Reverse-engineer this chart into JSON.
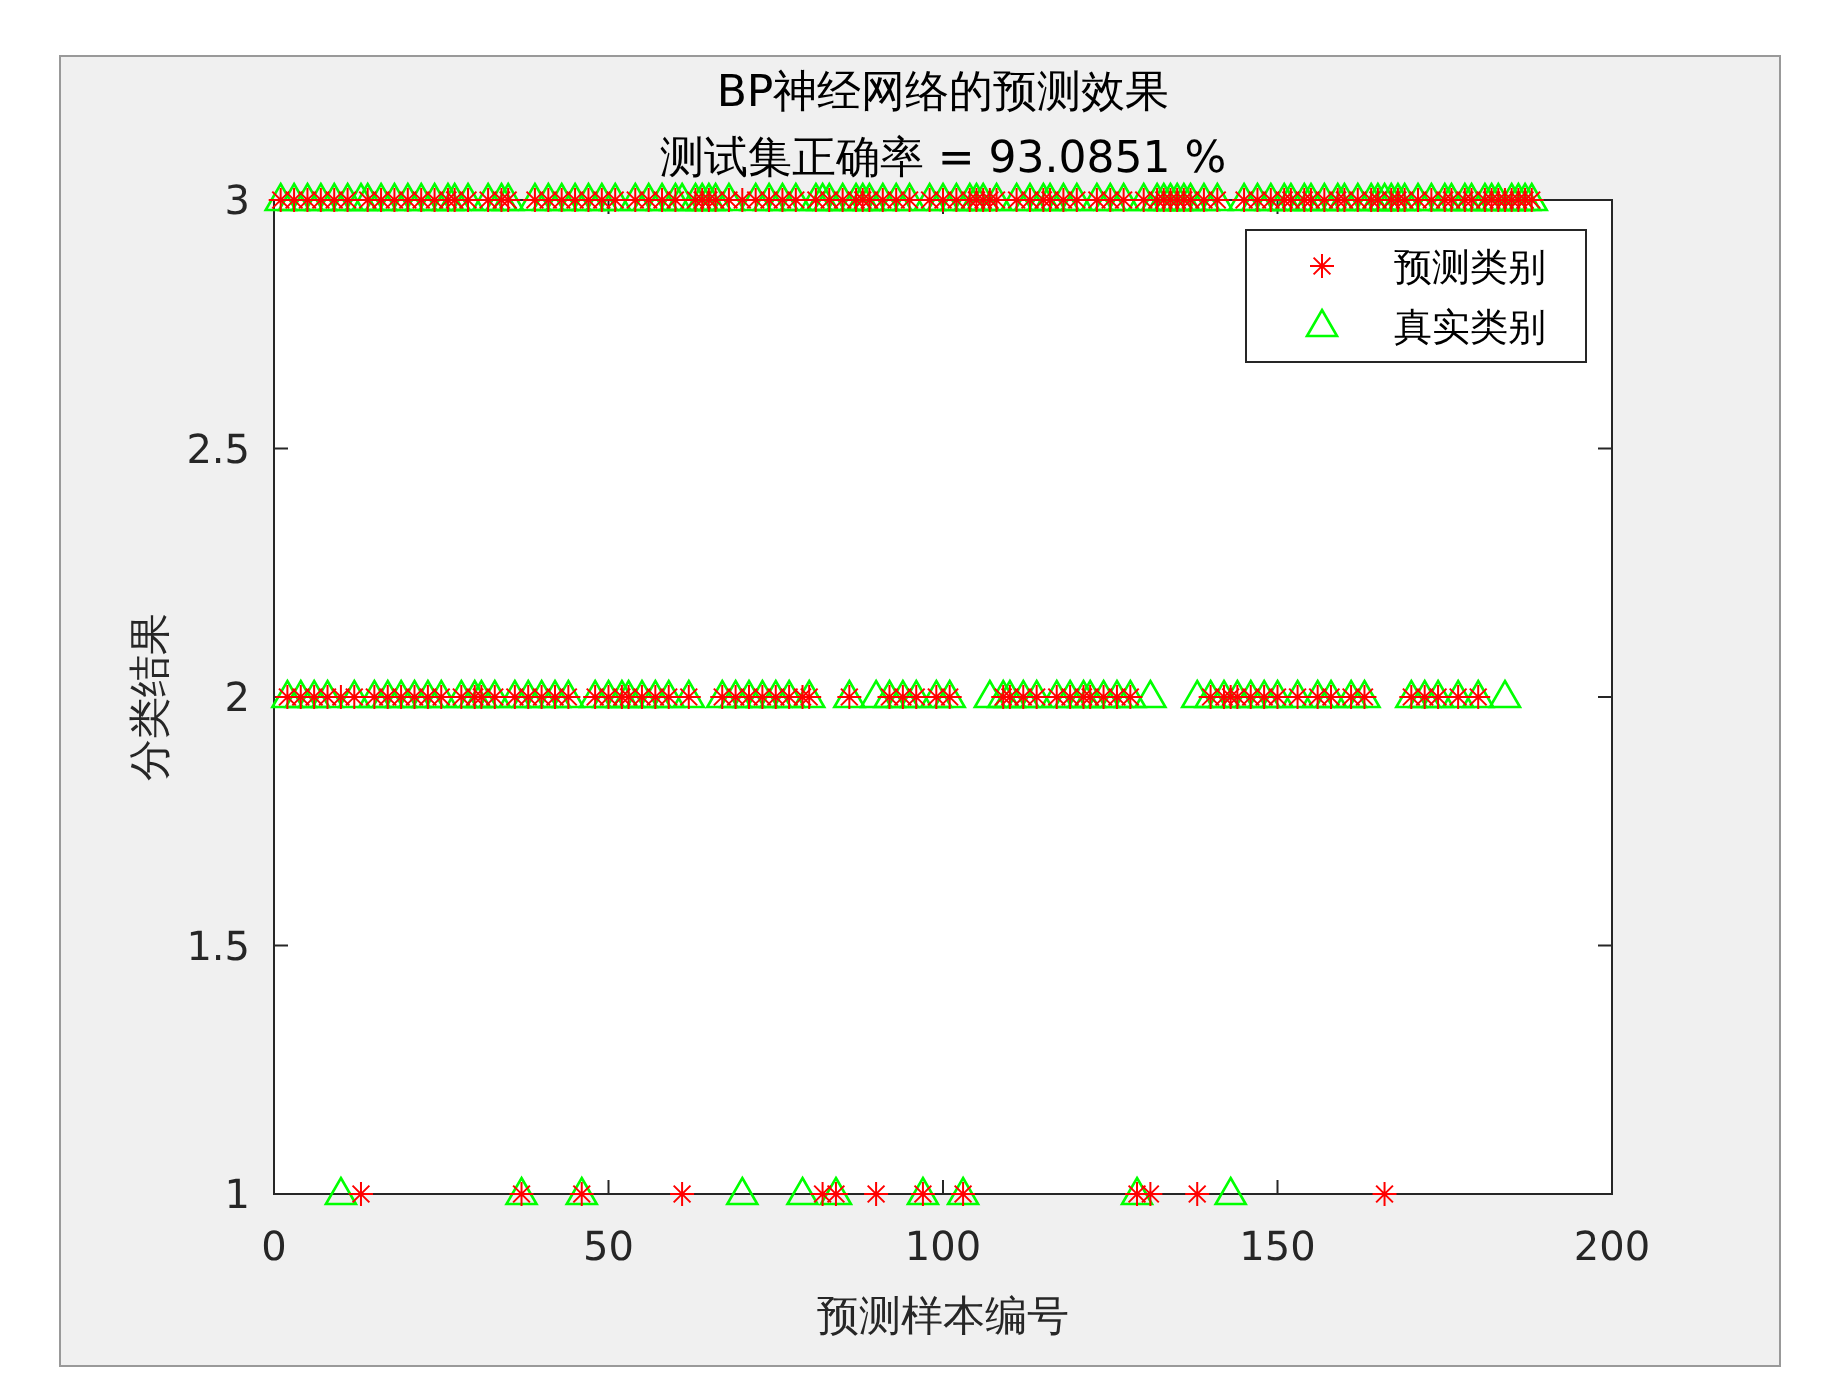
{
  "chart_data": {
    "type": "scatter",
    "title": "BP神经网络的预测效果",
    "subtitle": "测试集正确率 = 93.0851 %",
    "xlabel": "预测样本编号",
    "ylabel": "分类结果",
    "xlim": [
      0,
      200
    ],
    "ylim": [
      1,
      3
    ],
    "xticks": [
      0,
      50,
      100,
      150,
      200
    ],
    "yticks": [
      1,
      1.5,
      2,
      2.5,
      3
    ],
    "legend": "top right",
    "x": [
      1,
      2,
      3,
      4,
      5,
      6,
      7,
      8,
      9,
      10,
      11,
      12,
      13,
      14,
      15,
      16,
      17,
      18,
      19,
      20,
      21,
      22,
      23,
      24,
      25,
      26,
      27,
      28,
      29,
      30,
      31,
      32,
      33,
      34,
      35,
      36,
      37,
      38,
      39,
      40,
      41,
      42,
      43,
      44,
      45,
      46,
      47,
      48,
      49,
      50,
      51,
      52,
      53,
      54,
      55,
      56,
      57,
      58,
      59,
      60,
      61,
      62,
      63,
      64,
      65,
      66,
      67,
      68,
      69,
      70,
      71,
      72,
      73,
      74,
      75,
      76,
      77,
      78,
      79,
      80,
      81,
      82,
      83,
      84,
      85,
      86,
      87,
      88,
      89,
      90,
      91,
      92,
      93,
      94,
      95,
      96,
      97,
      98,
      99,
      100,
      101,
      102,
      103,
      104,
      105,
      106,
      107,
      108,
      109,
      110,
      111,
      112,
      113,
      114,
      115,
      116,
      117,
      118,
      119,
      120,
      121,
      122,
      123,
      124,
      125,
      126,
      127,
      128,
      129,
      130,
      131,
      132,
      133,
      134,
      135,
      136,
      137,
      138,
      139,
      140,
      141,
      142,
      143,
      144,
      145,
      146,
      147,
      148,
      149,
      150,
      151,
      152,
      153,
      154,
      155,
      156,
      157,
      158,
      159,
      160,
      161,
      162,
      163,
      164,
      165,
      166,
      167,
      168,
      169,
      170,
      171,
      172,
      173,
      174,
      175,
      176,
      177,
      178,
      179,
      180,
      181,
      182,
      183,
      184,
      185,
      186,
      187,
      188
    ],
    "series": [
      {
        "name": "预测类别",
        "color": "#ff0000",
        "marker": "cross",
        "values": [
          3,
          2,
          3,
          2,
          3,
          2,
          3,
          2,
          3,
          2,
          3,
          2,
          1,
          3,
          2,
          3,
          2,
          3,
          2,
          3,
          2,
          3,
          2,
          3,
          2,
          3,
          3,
          2,
          3,
          2,
          2,
          3,
          2,
          3,
          3,
          2,
          1,
          2,
          3,
          2,
          3,
          2,
          3,
          2,
          3,
          1,
          3,
          2,
          3,
          2,
          3,
          2,
          2,
          3,
          2,
          3,
          2,
          3,
          2,
          3,
          1,
          2,
          3,
          3,
          3,
          3,
          2,
          3,
          2,
          3,
          2,
          3,
          2,
          3,
          2,
          3,
          2,
          3,
          2,
          2,
          3,
          1,
          3,
          1,
          3,
          2,
          3,
          3,
          3,
          1,
          3,
          2,
          3,
          2,
          3,
          2,
          1,
          3,
          2,
          3,
          2,
          3,
          1,
          3,
          3,
          3,
          3,
          3,
          2,
          2,
          3,
          2,
          3,
          2,
          3,
          3,
          2,
          3,
          2,
          3,
          2,
          2,
          3,
          2,
          3,
          2,
          3,
          2,
          1,
          3,
          1,
          3,
          3,
          3,
          3,
          3,
          3,
          1,
          3,
          2,
          3,
          2,
          2,
          2,
          3,
          2,
          3,
          2,
          3,
          2,
          3,
          3,
          2,
          3,
          3,
          2,
          3,
          2,
          3,
          3,
          2,
          3,
          2,
          3,
          3,
          1,
          3,
          3,
          3,
          2,
          3,
          2,
          3,
          2,
          3,
          3,
          2,
          3,
          3,
          2,
          3,
          3,
          3,
          3,
          3,
          3,
          3,
          3
        ]
      },
      {
        "name": "真实类别",
        "color": "#00ff00",
        "marker": "triangle",
        "values": [
          3,
          2,
          3,
          2,
          3,
          2,
          3,
          2,
          3,
          1,
          3,
          2,
          3,
          3,
          2,
          3,
          2,
          3,
          2,
          3,
          2,
          3,
          2,
          3,
          2,
          3,
          3,
          2,
          3,
          2,
          2,
          3,
          2,
          3,
          3,
          2,
          1,
          2,
          3,
          2,
          3,
          2,
          3,
          2,
          3,
          1,
          3,
          2,
          3,
          2,
          3,
          2,
          2,
          3,
          2,
          3,
          2,
          3,
          2,
          3,
          3,
          2,
          3,
          3,
          3,
          3,
          2,
          3,
          2,
          1,
          2,
          3,
          2,
          3,
          2,
          3,
          2,
          3,
          1,
          2,
          3,
          3,
          3,
          1,
          3,
          2,
          3,
          3,
          3,
          2,
          3,
          2,
          3,
          2,
          3,
          2,
          1,
          3,
          2,
          3,
          2,
          3,
          1,
          3,
          3,
          3,
          2,
          3,
          2,
          2,
          3,
          2,
          3,
          2,
          3,
          3,
          2,
          3,
          2,
          3,
          2,
          2,
          3,
          2,
          3,
          2,
          3,
          2,
          1,
          3,
          2,
          3,
          3,
          3,
          3,
          3,
          3,
          2,
          3,
          2,
          3,
          2,
          1,
          2,
          3,
          2,
          3,
          2,
          3,
          2,
          3,
          3,
          2,
          3,
          3,
          2,
          3,
          2,
          3,
          3,
          2,
          3,
          2,
          3,
          3,
          3,
          3,
          3,
          3,
          2,
          3,
          2,
          3,
          2,
          3,
          3,
          2,
          3,
          3,
          2,
          3,
          3,
          3,
          2,
          3,
          3,
          3,
          3
        ]
      }
    ]
  }
}
